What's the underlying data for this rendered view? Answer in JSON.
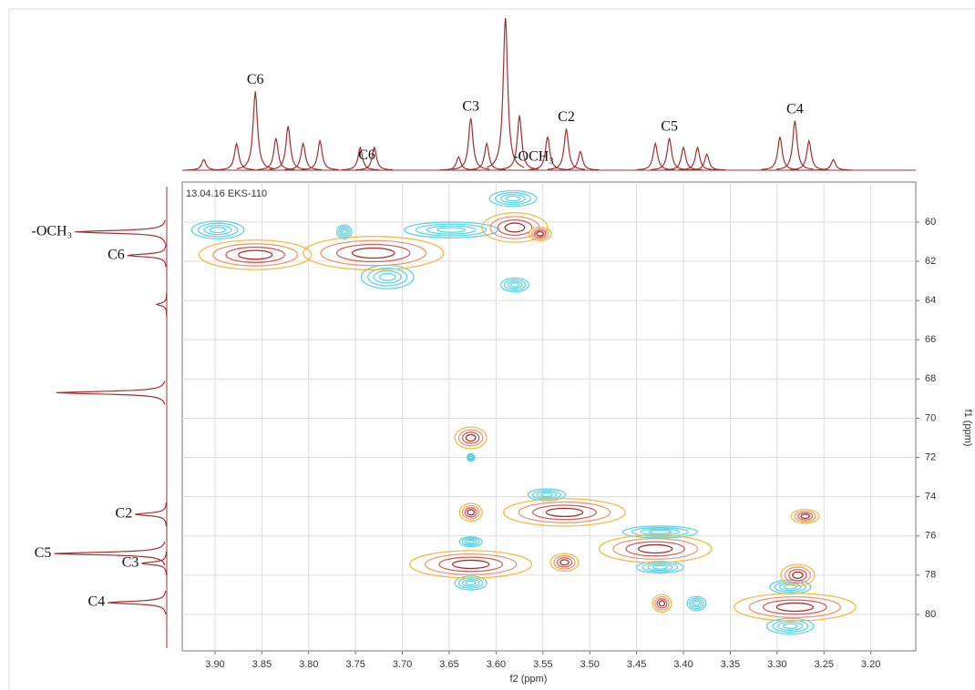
{
  "chart_data": {
    "type": "contour",
    "label": "13.04.16 EKS-110",
    "xlabel": "f2 (ppm)",
    "ylabel": "f1 (ppm)",
    "xlim": [
      3.935,
      3.152
    ],
    "ylim": [
      57.96,
      81.86
    ],
    "xticks": [
      {
        "value": 3.9,
        "label": "3.90"
      },
      3.85,
      {
        "value": 3.8,
        "label": "3.80"
      },
      3.75,
      {
        "value": 3.7,
        "label": "3.70"
      },
      3.65,
      {
        "value": 3.6,
        "label": "3.60"
      },
      3.55,
      {
        "value": 3.5,
        "label": "3.50"
      },
      3.45,
      {
        "value": 3.4,
        "label": "3.40"
      },
      3.35,
      {
        "value": 3.3,
        "label": "3.30"
      },
      3.25,
      {
        "value": 3.2,
        "label": "3.20"
      }
    ],
    "yticks": [
      60,
      62,
      64,
      66,
      68,
      70,
      72,
      74,
      76,
      78,
      80
    ],
    "grid": true,
    "positive_peaks": {
      "colors": [
        "#f5bb45",
        "#ec9a73",
        "#d2605a",
        "#a62e2e"
      ],
      "x": [
        3.857,
        3.731,
        3.58,
        3.627,
        3.627,
        3.527,
        3.627,
        3.527,
        3.43,
        3.278,
        3.27,
        3.281,
        3.423,
        3.553
      ],
      "y": [
        61.67,
        61.58,
        60.28,
        71.0,
        74.8,
        74.8,
        77.45,
        77.35,
        76.66,
        78.0,
        75.0,
        79.63,
        79.44,
        60.6
      ],
      "wx": [
        0.06,
        0.075,
        0.035,
        0.017,
        0.012,
        0.065,
        0.065,
        0.015,
        0.06,
        0.018,
        0.015,
        0.065,
        0.01,
        0.012
      ],
      "wy": [
        0.75,
        0.85,
        0.75,
        0.55,
        0.45,
        0.7,
        0.7,
        0.45,
        0.7,
        0.55,
        0.35,
        0.7,
        0.45,
        0.35
      ]
    },
    "negative_peaks": {
      "color": "#5fd4e4",
      "x": [
        3.897,
        3.716,
        3.582,
        3.58,
        3.648,
        3.627,
        3.627,
        3.627,
        3.546,
        3.425,
        3.425,
        3.386,
        3.286,
        3.286,
        3.762
      ],
      "y": [
        60.4,
        62.8,
        58.8,
        63.2,
        60.4,
        72.0,
        76.3,
        78.4,
        73.9,
        75.8,
        77.6,
        79.44,
        78.6,
        80.6,
        60.5
      ],
      "wx": [
        0.028,
        0.028,
        0.025,
        0.015,
        0.05,
        0.004,
        0.012,
        0.017,
        0.02,
        0.04,
        0.025,
        0.01,
        0.022,
        0.025,
        0.008
      ],
      "wy": [
        0.45,
        0.6,
        0.4,
        0.35,
        0.4,
        0.2,
        0.25,
        0.35,
        0.3,
        0.3,
        0.3,
        0.35,
        0.35,
        0.4,
        0.35
      ]
    },
    "trace_color": "#a03030",
    "top_trace": {
      "x": [
        3.912,
        3.877,
        3.857,
        3.835,
        3.822,
        3.806,
        3.788,
        3.745,
        3.73,
        3.64,
        3.627,
        3.61,
        3.59,
        3.575,
        3.545,
        3.525,
        3.51,
        3.43,
        3.415,
        3.4,
        3.385,
        3.375,
        3.297,
        3.281,
        3.266,
        3.24
      ],
      "values": [
        8,
        20,
        59,
        24,
        33,
        20,
        22,
        17,
        17,
        10,
        39,
        20,
        116,
        41,
        25,
        31,
        14,
        20,
        24,
        17,
        17,
        12,
        25,
        37,
        22,
        8
      ]
    },
    "left_trace": {
      "y": [
        60.5,
        61.7,
        64.2,
        68.7,
        74.9,
        76.9,
        77.4,
        79.4
      ],
      "values": [
        84,
        36,
        9,
        101,
        29,
        103,
        23,
        54
      ]
    },
    "top_annotations": [
      {
        "label": "C6",
        "x": 3.857
      },
      {
        "label": "C6",
        "x": 3.738
      },
      {
        "label": "C3",
        "x": 3.627
      },
      {
        "label": "-OCH₃",
        "x": 3.56
      },
      {
        "label": "C2",
        "x": 3.525
      },
      {
        "label": "C5",
        "x": 3.415
      },
      {
        "label": "C4",
        "x": 3.281
      }
    ],
    "left_annotations": [
      {
        "label": "-OCH₃",
        "y": 60.5
      },
      {
        "label": "C6",
        "y": 61.7
      },
      {
        "label": "C2",
        "y": 74.9
      },
      {
        "label": "C5",
        "y": 76.9
      },
      {
        "label": "C3",
        "y": 77.4
      },
      {
        "label": "C4",
        "y": 79.4
      }
    ]
  }
}
